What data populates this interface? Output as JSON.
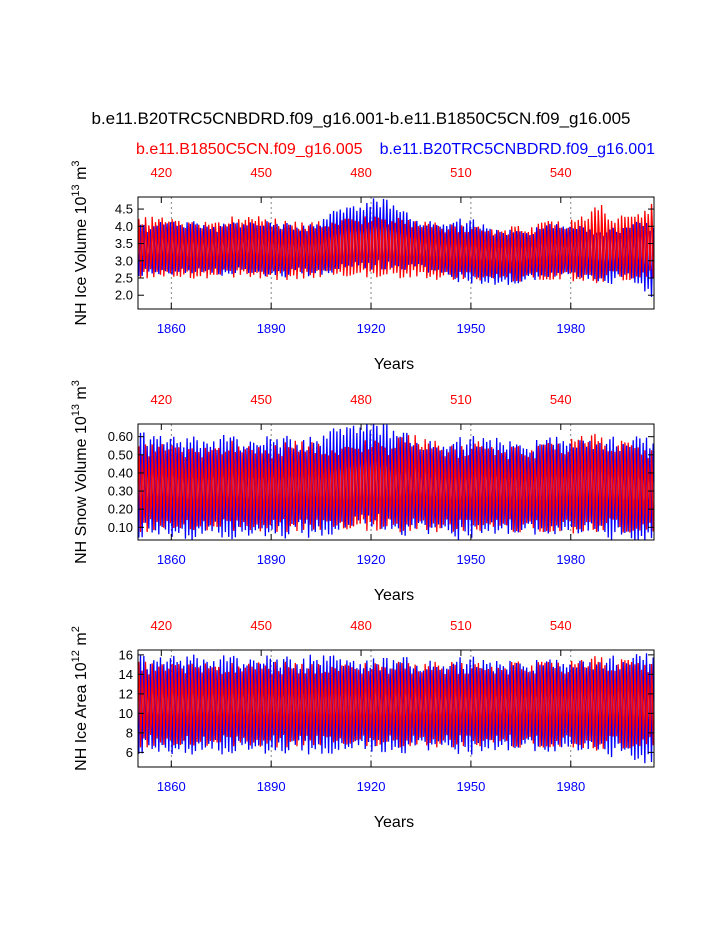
{
  "chart_data": [
    {
      "type": "line",
      "title": "b.e11.B20TRC5CNBDRD.f09_g16.001-b.e11.B1850C5CN.f09_g16.005",
      "ylabel_base": "NH Ice Volume 10",
      "ylabel_exp": "13",
      "ylabel_unit": " m",
      "ylabel_unit_exp": "3",
      "xlabel": "Years",
      "series": [
        {
          "name": "b.e11.B20TRC5CNBDRD.f09_g16.001",
          "color": "#0000ff"
        },
        {
          "name": "b.e11.B1850C5CN.f09_g16.005",
          "color": "#ff0000"
        }
      ],
      "x_bottom": {
        "range": [
          1850,
          2005
        ],
        "ticks": [
          1860,
          1890,
          1920,
          1950,
          1980
        ],
        "labels": [
          "1860",
          "1890",
          "1920",
          "1950",
          "1980"
        ],
        "color": "#0000ff"
      },
      "x_top": {
        "ticks": [
          420,
          450,
          480,
          510,
          540
        ],
        "labels": [
          "420",
          "450",
          "480",
          "510",
          "540"
        ],
        "color": "#ff0000"
      },
      "ylim": [
        1.6,
        4.85
      ],
      "yticks": [
        2.0,
        2.5,
        3.0,
        3.5,
        4.0,
        4.5
      ],
      "ytick_labels": [
        "2.0",
        "2.5",
        "3.0",
        "3.5",
        "4.0",
        "4.5"
      ],
      "blue_mean": [
        3.3,
        3.3,
        3.4,
        3.35,
        3.4,
        3.35,
        3.3,
        3.35,
        3.4,
        3.35,
        3.35,
        3.3,
        3.35,
        3.3,
        3.4,
        3.6,
        3.7,
        3.7,
        3.8,
        3.75,
        3.6,
        3.5,
        3.4,
        3.35,
        3.3,
        3.3,
        3.2,
        3.1,
        3.1,
        3.1,
        3.2,
        3.3,
        3.3,
        3.3,
        3.2,
        3.1,
        3.15,
        3.3,
        3.2,
        2.9
      ],
      "blue_amp": [
        0.65,
        0.65,
        0.7,
        0.65,
        0.65,
        0.65,
        0.65,
        0.65,
        0.7,
        0.7,
        0.7,
        0.7,
        0.65,
        0.65,
        0.7,
        0.8,
        0.85,
        0.9,
        0.95,
        0.9,
        0.75,
        0.7,
        0.7,
        0.75,
        0.8,
        0.8,
        0.8,
        0.75,
        0.75,
        0.75,
        0.7,
        0.7,
        0.7,
        0.7,
        0.7,
        0.7,
        0.7,
        0.7,
        0.8,
        1.0
      ],
      "red_mean": [
        3.35,
        3.4,
        3.4,
        3.35,
        3.3,
        3.3,
        3.35,
        3.4,
        3.4,
        3.4,
        3.35,
        3.3,
        3.3,
        3.3,
        3.35,
        3.35,
        3.4,
        3.4,
        3.4,
        3.4,
        3.35,
        3.35,
        3.3,
        3.25,
        3.25,
        3.25,
        3.2,
        3.2,
        3.2,
        3.2,
        3.25,
        3.3,
        3.3,
        3.3,
        3.4,
        3.5,
        3.4,
        3.35,
        3.45,
        3.6
      ],
      "red_amp": [
        0.8,
        0.85,
        0.85,
        0.8,
        0.8,
        0.8,
        0.8,
        0.85,
        0.85,
        0.85,
        0.85,
        0.8,
        0.8,
        0.8,
        0.8,
        0.8,
        0.85,
        0.85,
        0.85,
        0.85,
        0.8,
        0.8,
        0.8,
        0.75,
        0.75,
        0.75,
        0.75,
        0.75,
        0.75,
        0.75,
        0.75,
        0.8,
        0.8,
        0.85,
        0.95,
        1.1,
        0.9,
        0.85,
        0.9,
        1.1
      ]
    },
    {
      "type": "line",
      "ylabel_base": "NH Snow Volume 10",
      "ylabel_exp": "13",
      "ylabel_unit": " m",
      "ylabel_unit_exp": "3",
      "xlabel": "Years",
      "x_bottom": {
        "range": [
          1850,
          2005
        ],
        "ticks": [
          1860,
          1890,
          1920,
          1950,
          1980
        ],
        "labels": [
          "1860",
          "1890",
          "1920",
          "1950",
          "1980"
        ],
        "color": "#0000ff"
      },
      "x_top": {
        "ticks": [
          420,
          450,
          480,
          510,
          540
        ],
        "labels": [
          "420",
          "450",
          "480",
          "510",
          "540"
        ],
        "color": "#ff0000"
      },
      "ylim": [
        0.03,
        0.67
      ],
      "yticks": [
        0.1,
        0.2,
        0.3,
        0.4,
        0.5,
        0.6
      ],
      "ytick_labels": [
        "0.10",
        "0.20",
        "0.30",
        "0.40",
        "0.50",
        "0.60"
      ],
      "blue_mean": [
        0.33,
        0.34,
        0.33,
        0.32,
        0.31,
        0.32,
        0.33,
        0.32,
        0.31,
        0.32,
        0.33,
        0.32,
        0.33,
        0.32,
        0.33,
        0.36,
        0.38,
        0.4,
        0.4,
        0.37,
        0.34,
        0.33,
        0.32,
        0.32,
        0.31,
        0.32,
        0.33,
        0.33,
        0.32,
        0.31,
        0.32,
        0.33,
        0.33,
        0.32,
        0.33,
        0.32,
        0.31,
        0.31,
        0.31,
        0.3
      ],
      "blue_amp": [
        0.25,
        0.26,
        0.24,
        0.24,
        0.25,
        0.24,
        0.24,
        0.25,
        0.25,
        0.24,
        0.24,
        0.25,
        0.24,
        0.24,
        0.24,
        0.26,
        0.27,
        0.27,
        0.27,
        0.26,
        0.25,
        0.25,
        0.24,
        0.24,
        0.25,
        0.24,
        0.24,
        0.25,
        0.24,
        0.24,
        0.24,
        0.24,
        0.25,
        0.24,
        0.24,
        0.24,
        0.25,
        0.25,
        0.25,
        0.25
      ],
      "red_mean": [
        0.31,
        0.32,
        0.33,
        0.32,
        0.31,
        0.31,
        0.32,
        0.33,
        0.32,
        0.31,
        0.31,
        0.32,
        0.33,
        0.33,
        0.32,
        0.31,
        0.32,
        0.33,
        0.33,
        0.32,
        0.34,
        0.35,
        0.33,
        0.32,
        0.31,
        0.32,
        0.33,
        0.32,
        0.31,
        0.31,
        0.31,
        0.32,
        0.32,
        0.33,
        0.35,
        0.34,
        0.33,
        0.32,
        0.31,
        0.3
      ],
      "red_amp": [
        0.22,
        0.23,
        0.23,
        0.22,
        0.22,
        0.22,
        0.23,
        0.24,
        0.23,
        0.22,
        0.22,
        0.23,
        0.24,
        0.24,
        0.23,
        0.22,
        0.23,
        0.24,
        0.24,
        0.23,
        0.25,
        0.26,
        0.24,
        0.23,
        0.22,
        0.23,
        0.24,
        0.23,
        0.22,
        0.22,
        0.22,
        0.23,
        0.23,
        0.25,
        0.26,
        0.25,
        0.24,
        0.23,
        0.22,
        0.22
      ]
    },
    {
      "type": "line",
      "ylabel_base": "NH Ice Area 10",
      "ylabel_exp": "12",
      "ylabel_unit": " m",
      "ylabel_unit_exp": "2",
      "xlabel": "Years",
      "x_bottom": {
        "range": [
          1850,
          2005
        ],
        "ticks": [
          1860,
          1890,
          1920,
          1950,
          1980
        ],
        "labels": [
          "1860",
          "1890",
          "1920",
          "1950",
          "1980"
        ],
        "color": "#0000ff"
      },
      "x_top": {
        "ticks": [
          420,
          450,
          480,
          510,
          540
        ],
        "labels": [
          "420",
          "450",
          "480",
          "510",
          "540"
        ],
        "color": "#ff0000"
      },
      "ylim": [
        4.5,
        16.5
      ],
      "yticks": [
        6,
        8,
        10,
        12,
        14,
        16
      ],
      "ytick_labels": [
        "6",
        "8",
        "10",
        "12",
        "14",
        "16"
      ],
      "blue_mean": [
        10.9,
        10.9,
        10.9,
        10.85,
        10.9,
        10.9,
        10.85,
        10.9,
        10.9,
        10.9,
        10.9,
        10.85,
        10.9,
        10.9,
        10.9,
        10.9,
        10.9,
        10.9,
        10.85,
        10.85,
        10.85,
        10.8,
        10.8,
        10.8,
        10.8,
        10.8,
        10.8,
        10.8,
        10.8,
        10.8,
        10.8,
        10.8,
        10.8,
        10.8,
        10.8,
        10.75,
        10.7,
        10.7,
        10.6,
        10.3
      ],
      "blue_amp": [
        4.4,
        4.4,
        4.4,
        4.35,
        4.4,
        4.4,
        4.35,
        4.4,
        4.4,
        4.4,
        4.4,
        4.35,
        4.4,
        4.4,
        4.4,
        4.4,
        4.4,
        4.4,
        4.35,
        4.35,
        4.35,
        4.3,
        4.3,
        4.3,
        4.3,
        4.3,
        4.3,
        4.3,
        4.3,
        4.3,
        4.3,
        4.3,
        4.3,
        4.3,
        4.3,
        4.4,
        4.5,
        4.6,
        4.7,
        5.2
      ],
      "red_mean": [
        10.9,
        10.9,
        10.9,
        10.9,
        10.9,
        10.9,
        10.9,
        10.9,
        10.9,
        10.9,
        10.9,
        10.9,
        10.9,
        10.9,
        10.9,
        10.9,
        10.9,
        10.9,
        10.9,
        10.9,
        10.9,
        10.9,
        10.9,
        10.9,
        10.9,
        10.9,
        10.9,
        10.9,
        10.9,
        10.9,
        10.9,
        10.9,
        10.9,
        10.95,
        11.0,
        11.05,
        11.0,
        10.95,
        10.9,
        10.9
      ],
      "red_amp": [
        4.1,
        4.1,
        4.1,
        4.1,
        4.1,
        4.1,
        4.1,
        4.1,
        4.1,
        4.1,
        4.1,
        4.1,
        4.1,
        4.1,
        4.1,
        4.1,
        4.1,
        4.1,
        4.1,
        4.1,
        4.1,
        4.1,
        4.1,
        4.1,
        4.1,
        4.1,
        4.1,
        4.1,
        4.1,
        4.1,
        4.1,
        4.1,
        4.1,
        4.2,
        4.5,
        4.6,
        4.3,
        4.2,
        4.1,
        4.1
      ]
    }
  ]
}
